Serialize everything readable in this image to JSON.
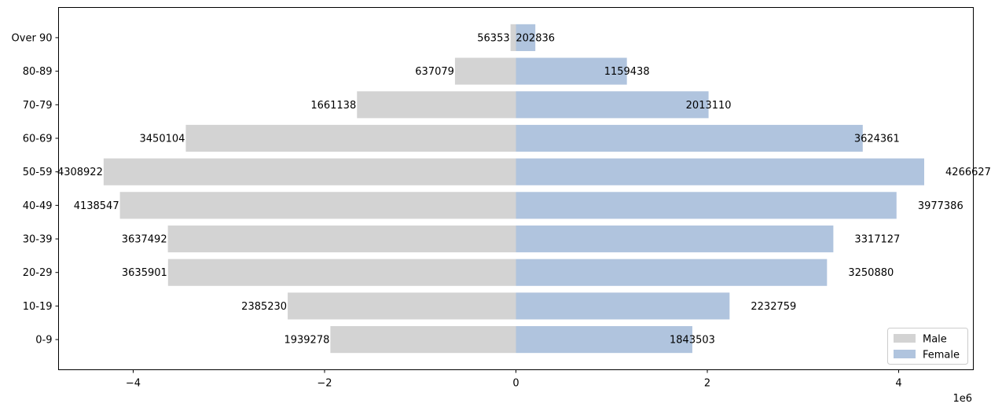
{
  "chart_data": {
    "type": "bar",
    "orientation": "horizontal",
    "layout": "population-pyramid",
    "title": "",
    "xlabel": "",
    "ylabel": "",
    "x_scale_label": "1e6",
    "x_scale_factor": 1000000,
    "xlim": [
      -4.78,
      4.78
    ],
    "x_ticks": [
      -4,
      -2,
      0,
      2,
      4
    ],
    "x_tick_labels": [
      "−4",
      "−2",
      "0",
      "2",
      "4"
    ],
    "grid": false,
    "legend_position": "lower-right",
    "categories": [
      "0-9",
      "10-19",
      "20-29",
      "30-39",
      "40-49",
      "50-59",
      "60-69",
      "70-79",
      "80-89",
      "Over 90"
    ],
    "series": [
      {
        "name": "Male",
        "color": "#d3d3d3",
        "direction": "negative",
        "values": [
          1939278,
          2385230,
          3635901,
          3637492,
          4138547,
          4308922,
          3450104,
          1661138,
          637079,
          56353
        ],
        "labels": [
          "1939278",
          "2385230",
          "3635901",
          "3637492",
          "4138547",
          "4308922",
          "3450104",
          "1661138",
          "637079",
          "56353"
        ]
      },
      {
        "name": "Female",
        "color": "#b0c4de",
        "direction": "positive",
        "values": [
          1843503,
          2232759,
          3250880,
          3317127,
          3977386,
          4266627,
          3624361,
          2013110,
          1159438,
          202836
        ],
        "labels": [
          "1843503",
          "2232759",
          "3250880",
          "3317127",
          "3977386",
          "4266627",
          "3624361",
          "2013110",
          "1159438",
          "202836"
        ]
      }
    ]
  }
}
